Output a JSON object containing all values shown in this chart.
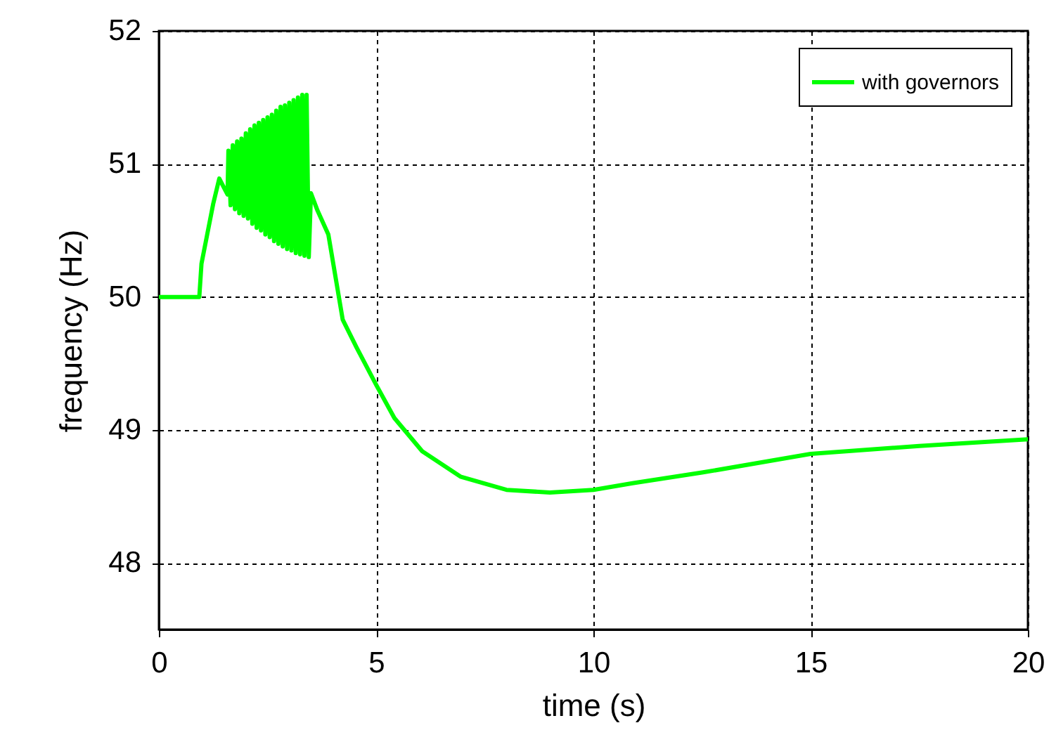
{
  "chart_data": {
    "type": "line",
    "xlabel": "time (s)",
    "ylabel": "frequency (Hz)",
    "xlim": [
      0,
      20
    ],
    "xticks": [
      0,
      5,
      10,
      15,
      20
    ],
    "ylim": [
      47.5,
      52
    ],
    "yticks": [
      48,
      49,
      50,
      51,
      52
    ],
    "grid": true,
    "legend": "top right",
    "line_style": "solid",
    "marker": "none",
    "series": [
      {
        "name": "with governors",
        "color": "#00ff00",
        "x": [
          0,
          0.93,
          0.98,
          1.1,
          1.25,
          1.39,
          1.5,
          1.58,
          1.6,
          1.65,
          1.7,
          1.75,
          1.8,
          1.85,
          1.9,
          1.95,
          2.0,
          2.05,
          2.1,
          2.15,
          2.2,
          2.25,
          2.3,
          2.35,
          2.4,
          2.45,
          2.5,
          2.55,
          2.6,
          2.65,
          2.7,
          2.75,
          2.8,
          2.85,
          2.9,
          2.95,
          3.0,
          3.05,
          3.1,
          3.15,
          3.2,
          3.25,
          3.3,
          3.35,
          3.4,
          3.45,
          3.5,
          3.65,
          3.9,
          4.23,
          4.55,
          5.0,
          5.42,
          6.06,
          6.94,
          8.0,
          9.0,
          10.0,
          10.9,
          12.5,
          15.0,
          17.5,
          20.0
        ],
        "values": [
          50.0,
          50.0,
          50.25,
          50.45,
          50.7,
          50.89,
          50.82,
          50.77,
          51.1,
          50.69,
          51.14,
          50.66,
          51.17,
          50.63,
          51.19,
          50.61,
          51.23,
          50.59,
          51.26,
          50.55,
          51.29,
          50.52,
          51.31,
          50.5,
          51.33,
          50.47,
          51.35,
          50.45,
          51.37,
          50.42,
          51.4,
          50.4,
          51.43,
          50.38,
          51.44,
          50.36,
          51.46,
          50.35,
          51.48,
          50.33,
          51.5,
          50.32,
          51.52,
          50.31,
          51.52,
          50.3,
          50.78,
          50.65,
          50.47,
          49.83,
          49.62,
          49.34,
          49.09,
          48.84,
          48.65,
          48.55,
          48.53,
          48.55,
          48.6,
          48.68,
          48.82,
          48.88,
          48.93
        ]
      }
    ]
  }
}
